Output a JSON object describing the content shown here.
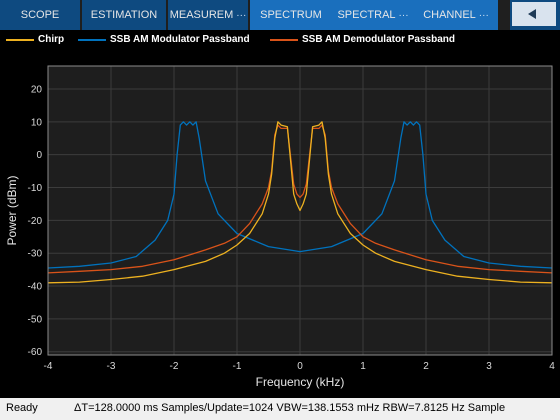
{
  "toolstrip": {
    "tabs": [
      {
        "label": "SCOPE",
        "more": ""
      },
      {
        "label": "ESTIMATION",
        "more": ""
      },
      {
        "label": "MEASUREM",
        "more": "···"
      },
      {
        "label": "SPECTRUM",
        "more": ""
      },
      {
        "label": "SPECTRAL",
        "more": "···"
      },
      {
        "label": "CHANNEL",
        "more": "···"
      }
    ],
    "active_tab": "SPECTRUM"
  },
  "legend": {
    "items": [
      {
        "label": "Chirp",
        "color": "#edb120"
      },
      {
        "label": "SSB AM Modulator Passband",
        "color": "#0072bd"
      },
      {
        "label": "SSB AM Demodulator Passband",
        "color": "#d95319"
      }
    ]
  },
  "chart_data": {
    "type": "line",
    "xlabel": "Frequency (kHz)",
    "ylabel": "Power (dBm)",
    "xlim": [
      -4,
      4
    ],
    "ylim": [
      -61,
      27
    ],
    "xticks": [
      -4,
      -3,
      -2,
      -1,
      0,
      1,
      2,
      3,
      4
    ],
    "yticks": [
      20,
      10,
      0,
      -10,
      -20,
      -30,
      -40,
      -50,
      -60
    ],
    "grid": true,
    "background": "#000000",
    "series": [
      {
        "name": "Chirp",
        "color": "#edb120",
        "x": [
          -4,
          -3.5,
          -3,
          -2.5,
          -2,
          -1.5,
          -1.2,
          -1,
          -0.8,
          -0.6,
          -0.5,
          -0.45,
          -0.4,
          -0.35,
          -0.3,
          -0.2,
          -0.1,
          -0.05,
          0,
          0.05,
          0.1,
          0.2,
          0.3,
          0.35,
          0.4,
          0.45,
          0.5,
          0.6,
          0.8,
          1,
          1.2,
          1.5,
          2,
          2.5,
          3,
          3.5,
          4
        ],
        "y": [
          -39,
          -38.8,
          -38,
          -37,
          -35,
          -32.5,
          -30,
          -27.5,
          -24,
          -18,
          -12,
          -6,
          5,
          10,
          9,
          8.5,
          -12,
          -15,
          -17,
          -15,
          -12,
          8.5,
          9,
          10,
          5,
          -6,
          -12,
          -18,
          -24,
          -27.5,
          -30,
          -32.5,
          -35,
          -37,
          -38,
          -38.8,
          -39
        ]
      },
      {
        "name": "SSB AM Modulator Passband",
        "color": "#0072bd",
        "x": [
          -4,
          -3.5,
          -3,
          -2.6,
          -2.3,
          -2.1,
          -2,
          -1.95,
          -1.9,
          -1.85,
          -1.8,
          -1.75,
          -1.7,
          -1.65,
          -1.6,
          -1.5,
          -1.3,
          -1,
          -0.5,
          0,
          0.5,
          1,
          1.3,
          1.5,
          1.6,
          1.65,
          1.7,
          1.75,
          1.8,
          1.85,
          1.9,
          1.95,
          2,
          2.1,
          2.3,
          2.6,
          3,
          3.5,
          4
        ],
        "y": [
          -34.5,
          -34,
          -33,
          -31,
          -26,
          -20,
          -12,
          0,
          9,
          10,
          9,
          10,
          9,
          10,
          5,
          -8,
          -18,
          -24,
          -28,
          -29.5,
          -28,
          -24,
          -18,
          -8,
          5,
          10,
          9,
          10,
          9,
          10,
          9,
          0,
          -12,
          -20,
          -26,
          -31,
          -33,
          -34,
          -34.5
        ]
      },
      {
        "name": "SSB AM Demodulator Passband",
        "color": "#d95319",
        "x": [
          -4,
          -3.5,
          -3,
          -2.5,
          -2,
          -1.5,
          -1.2,
          -1,
          -0.8,
          -0.6,
          -0.5,
          -0.45,
          -0.4,
          -0.35,
          -0.3,
          -0.2,
          -0.1,
          -0.05,
          0,
          0.05,
          0.1,
          0.2,
          0.3,
          0.35,
          0.4,
          0.45,
          0.5,
          0.6,
          0.8,
          1,
          1.2,
          1.5,
          2,
          2.5,
          3,
          3.5,
          4
        ],
        "y": [
          -36,
          -35.5,
          -35,
          -34,
          -32,
          -29,
          -27,
          -25,
          -21,
          -15,
          -10,
          -5,
          6,
          9,
          8,
          8,
          -9,
          -12,
          -13,
          -12,
          -9,
          8,
          8,
          9,
          6,
          -5,
          -10,
          -15,
          -21,
          -25,
          -27,
          -29,
          -32,
          -34,
          -35,
          -35.5,
          -36
        ]
      }
    ]
  },
  "status": {
    "ready": "Ready",
    "info": "ΔT=128.0000 ms  Samples/Update=1024  VBW=138.1553 mHz  RBW=7.8125 Hz  Sample"
  }
}
